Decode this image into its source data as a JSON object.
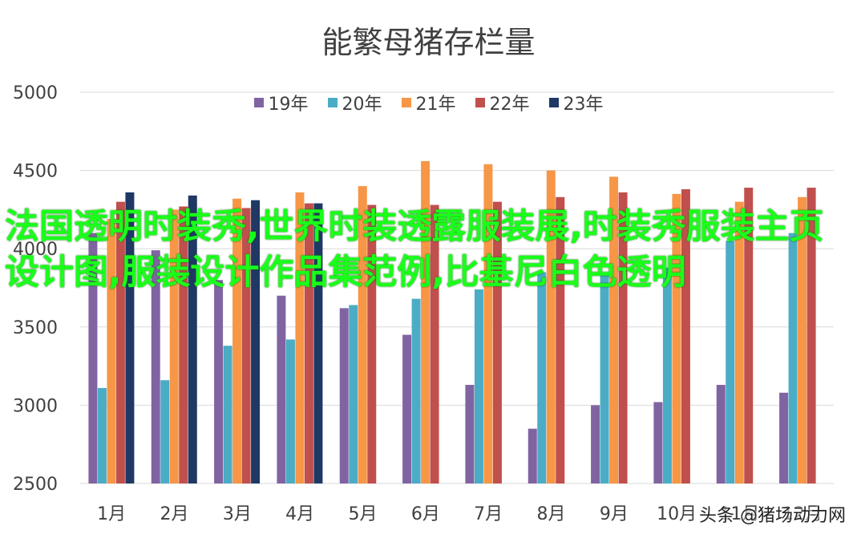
{
  "chart_data": {
    "type": "bar",
    "title": "能繁母猪存栏量",
    "categories": [
      "1月",
      "2月",
      "3月",
      "4月",
      "5月",
      "6月",
      "7月",
      "8月",
      "9月",
      "10月",
      "11月",
      "12月"
    ],
    "ylim": [
      2500,
      5000
    ],
    "yticks": [
      2500,
      3000,
      3500,
      4000,
      4500,
      5000
    ],
    "grid": true,
    "legend_position": "top",
    "series": [
      {
        "name": "19年",
        "color": "#8064a2",
        "values": [
          4100,
          3990,
          3800,
          3700,
          3620,
          3450,
          3130,
          2850,
          3000,
          3020,
          3130,
          3080
        ]
      },
      {
        "name": "20年",
        "color": "#4bacc6",
        "values": [
          3110,
          3160,
          3380,
          3420,
          3640,
          3680,
          3740,
          3850,
          3850,
          3880,
          4050,
          4100
        ]
      },
      {
        "name": "21年",
        "color": "#f79646",
        "values": [
          4190,
          4250,
          4320,
          4360,
          4400,
          4560,
          4540,
          4500,
          4460,
          4350,
          4300,
          4330
        ]
      },
      {
        "name": "22年",
        "color": "#c0504d",
        "values": [
          4300,
          4270,
          4260,
          4290,
          4280,
          4280,
          4300,
          4330,
          4360,
          4380,
          4390,
          4390
        ]
      },
      {
        "name": "23年",
        "color": "#1f3864",
        "values": [
          4360,
          4340,
          4310,
          4290,
          null,
          null,
          null,
          null,
          null,
          null,
          null,
          null
        ]
      }
    ]
  },
  "overlay_text": "法国透明时装秀,世界时装透露服装展,时装秀服装主页设计图,服装设计作品集范例,比基尼白色透明",
  "watermark_text": "头条 @猪场动力网"
}
